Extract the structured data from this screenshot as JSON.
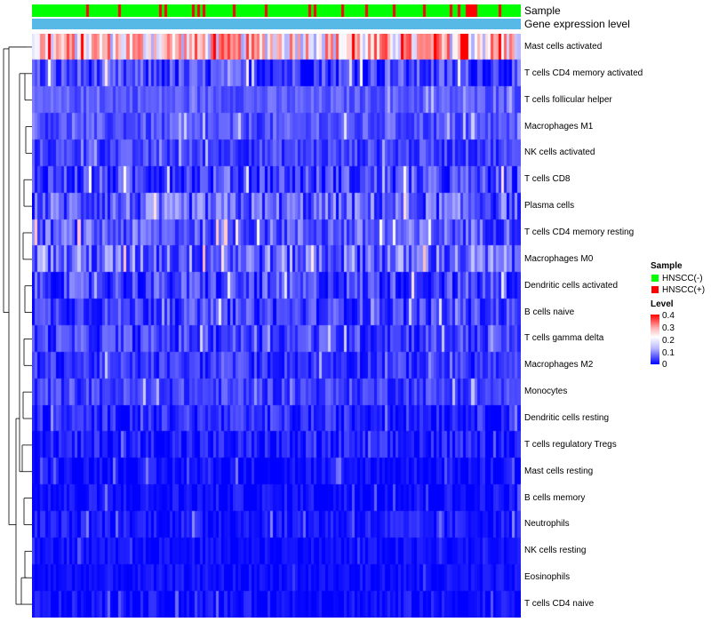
{
  "annotations": {
    "sample_track_label": "Sample",
    "expression_track_label": "Gene expression level"
  },
  "legend": {
    "sample_title": "Sample",
    "sample_items": [
      {
        "label": "HNSCC(-)",
        "color": "#00ff00"
      },
      {
        "label": "HNSCC(+)",
        "color": "#ff0000"
      }
    ],
    "level_title": "Level",
    "level_ticks": [
      "0.4",
      "0.3",
      "0.2",
      "0.1",
      "0"
    ],
    "colors": {
      "low": "#0000ff",
      "mid": "#ffffff",
      "high": "#ff0000",
      "expression_track": "#56b9e6"
    }
  },
  "chart_data": {
    "type": "heatmap",
    "title": "",
    "value_range": [
      0,
      0.4
    ],
    "colormap": [
      "#0000ff",
      "#ffffff",
      "#ff0000"
    ],
    "n_samples": 180,
    "sample_groups": {
      "HNSCC(-)": "majority",
      "HNSCC(+)": "scattered minority"
    },
    "rows": [
      {
        "name": "Mast cells activated",
        "mean_level": 0.24,
        "spread": 0.12
      },
      {
        "name": "T cells CD4 memory activated",
        "mean_level": 0.05,
        "spread": 0.06
      },
      {
        "name": "T cells follicular helper",
        "mean_level": 0.07,
        "spread": 0.03
      },
      {
        "name": "Macrophages M1",
        "mean_level": 0.06,
        "spread": 0.04
      },
      {
        "name": "NK cells activated",
        "mean_level": 0.05,
        "spread": 0.04
      },
      {
        "name": "T cells CD8",
        "mean_level": 0.05,
        "spread": 0.06
      },
      {
        "name": "Plasma cells",
        "mean_level": 0.07,
        "spread": 0.07
      },
      {
        "name": "T cells CD4 memory resting",
        "mean_level": 0.07,
        "spread": 0.06
      },
      {
        "name": "Macrophages M0",
        "mean_level": 0.08,
        "spread": 0.08
      },
      {
        "name": "Dendritic cells activated",
        "mean_level": 0.05,
        "spread": 0.06
      },
      {
        "name": "B cells naive",
        "mean_level": 0.05,
        "spread": 0.05
      },
      {
        "name": "T cells gamma delta",
        "mean_level": 0.05,
        "spread": 0.05
      },
      {
        "name": "Macrophages M2",
        "mean_level": 0.04,
        "spread": 0.04
      },
      {
        "name": "Monocytes",
        "mean_level": 0.05,
        "spread": 0.04
      },
      {
        "name": "Dendritic cells resting",
        "mean_level": 0.03,
        "spread": 0.04
      },
      {
        "name": "T cells regulatory  Tregs",
        "mean_level": 0.02,
        "spread": 0.04
      },
      {
        "name": "Mast cells resting",
        "mean_level": 0.01,
        "spread": 0.03
      },
      {
        "name": "B cells memory",
        "mean_level": 0.01,
        "spread": 0.03
      },
      {
        "name": "Neutrophils",
        "mean_level": 0.02,
        "spread": 0.03
      },
      {
        "name": "NK cells resting",
        "mean_level": 0.01,
        "spread": 0.02
      },
      {
        "name": "Eosinophils",
        "mean_level": 0.01,
        "spread": 0.02
      },
      {
        "name": "T cells CD4 naive",
        "mean_level": 0.01,
        "spread": 0.03
      }
    ]
  }
}
